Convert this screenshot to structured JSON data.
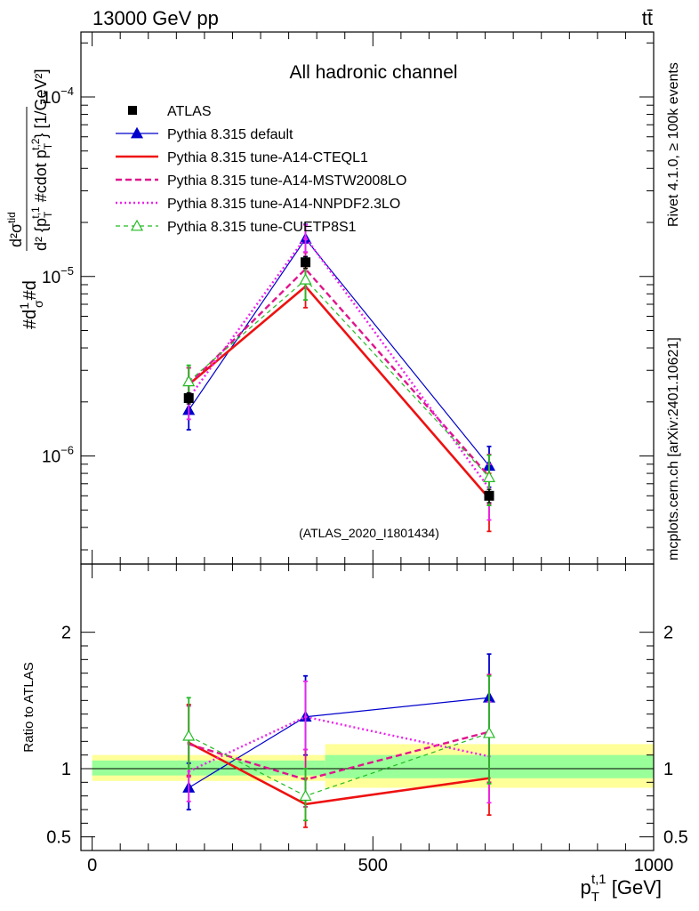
{
  "header": {
    "energy_label": "13000 GeV pp",
    "process_label": "tt̄",
    "channel_title": "All hadronic channel",
    "analysis_id": "(ATLAS_2020_I1801434)",
    "side_label_top": "Rivet 4.1.0, ≥ 100k events",
    "side_label_bottom": "mcplots.cern.ch [arXiv:2401.10621]"
  },
  "colors": {
    "data": "#000000",
    "default": "#0000cc",
    "cteql1": "#ee1111",
    "mstw": "#e0158c",
    "nnpdf": "#ee22ee",
    "cuetp": "#22bb22",
    "band_inner": "#99ff99",
    "band_outer": "#ffff99",
    "analysis_text": "#999999",
    "side_text": "#888888"
  },
  "chart_data": [
    {
      "type": "line",
      "panel": "main",
      "yscale": "log",
      "ylabel": "#d#frac{1}{σ}#d#frac{d^{2}σ^{tid}}{d^{2} {p_{T}^{t,1} #cdot p_{T}^{t,2}}} [1/GeV^{2}]",
      "ylabel_parts": {
        "top_frac": "d²σ",
        "top_sup": "tid",
        "left_a": "#d",
        "left_frac_num": "1",
        "left_frac_den": "σ",
        "left_b": "#d",
        "bottom": "d² {p",
        "bottom_sub": "T",
        "bottom_sup": "t,1",
        "bottom_mid": " #cdot p",
        "bottom_sub2": "T",
        "bottom_sup2": "t,2",
        "bottom_close": "}",
        "units": " [1/GeV²]"
      },
      "ylim": [
        2.5e-07,
        0.00023
      ],
      "xlim": [
        -20,
        1000
      ],
      "ytick_labels": [
        {
          "value": 1e-06,
          "mantissa": "10",
          "exponent": "−6"
        },
        {
          "value": 1e-05,
          "mantissa": "10",
          "exponent": "−5"
        },
        {
          "value": 0.0001,
          "mantissa": "10",
          "exponent": "−4"
        }
      ],
      "x": [
        172,
        380,
        707
      ],
      "data": {
        "name": "ATLAS",
        "values": [
          2.1e-06,
          1.2e-05,
          6e-07
        ],
        "yerr_low": [
          1.5e-07,
          9e-07,
          5e-08
        ],
        "yerr_high": [
          1.5e-07,
          9e-07,
          5e-08
        ]
      },
      "series": [
        {
          "name": "Pythia 8.315 default",
          "key": "default",
          "style": "solid",
          "width": 1.2,
          "marker": "triangle-filled",
          "values": [
            1.8e-06,
            1.62e-05,
            8.8e-07
          ],
          "yerr_low": [
            4e-07,
            3.3e-06,
            2.1e-07
          ],
          "yerr_high": [
            4e-07,
            3.3e-06,
            2.5e-07
          ]
        },
        {
          "name": "Pythia 8.315 tune-A14-CTEQL1",
          "key": "cteql1",
          "style": "solid",
          "width": 2.6,
          "marker": "none",
          "values": [
            2.5e-06,
            8.8e-06,
            5.8e-07
          ],
          "yerr_low": [
            5e-07,
            2.1e-06,
            2e-07
          ],
          "yerr_high": [
            6e-07,
            2.3e-06,
            2.2e-07
          ]
        },
        {
          "name": "Pythia 8.315 tune-A14-MSTW2008LO",
          "key": "mstw",
          "style": "dashed",
          "width": 2.4,
          "marker": "none",
          "values": [
            2.5e-06,
            1.1e-05,
            7.7e-07
          ],
          "yerr_low": [
            5e-07,
            2.4e-06,
            2.3e-07
          ],
          "yerr_high": [
            6e-07,
            2.6e-06,
            2.5e-07
          ]
        },
        {
          "name": "Pythia 8.315 tune-A14-NNPDF2.3LO",
          "key": "nnpdf",
          "style": "dotted",
          "width": 2.4,
          "marker": "none",
          "values": [
            2.1e-06,
            1.65e-05,
            6.6e-07
          ],
          "yerr_low": [
            5e-07,
            2.8e-06,
            2.2e-07
          ],
          "yerr_high": [
            6e-07,
            2.9e-06,
            2.4e-07
          ]
        },
        {
          "name": "Pythia 8.315 tune-CUETP8S1",
          "key": "cuetp",
          "style": "dashed-thin",
          "width": 1.2,
          "marker": "triangle-open",
          "values": [
            2.6e-06,
            9.6e-06,
            7.6e-07
          ],
          "yerr_low": [
            5e-07,
            2.2e-06,
            2.3e-07
          ],
          "yerr_high": [
            6e-07,
            2.4e-06,
            2.5e-07
          ]
        }
      ]
    },
    {
      "type": "line",
      "panel": "ratio",
      "ylabel": "Ratio to ATLAS",
      "xlabel": "p_{T}^{t,1} [GeV]",
      "xlabel_parts": {
        "main": "p",
        "sub": "T",
        "sup": "t,1",
        "units": " [GeV]"
      },
      "ylim": [
        0.4,
        2.5
      ],
      "xlim": [
        -20,
        1000
      ],
      "ytick_labels": [
        {
          "value": 0.5,
          "label": "0.5"
        },
        {
          "value": 1,
          "label": "1"
        },
        {
          "value": 2,
          "label": "2"
        }
      ],
      "xtick_labels": [
        {
          "value": 0,
          "label": "0"
        },
        {
          "value": 500,
          "label": "500"
        },
        {
          "value": 1000,
          "label": "1000"
        }
      ],
      "bands": [
        {
          "x0": 0,
          "x1": 415,
          "inner": [
            0.95,
            1.06
          ],
          "outer": [
            0.91,
            1.1
          ]
        },
        {
          "x0": 415,
          "x1": 1000,
          "inner": [
            0.93,
            1.1
          ],
          "outer": [
            0.86,
            1.18
          ]
        }
      ],
      "x": [
        172,
        380,
        707
      ],
      "series": [
        {
          "key": "default",
          "values": [
            0.86,
            1.38,
            1.52
          ],
          "yerr_low": [
            0.16,
            0.28,
            0.27
          ],
          "yerr_high": [
            0.18,
            0.3,
            0.32
          ]
        },
        {
          "key": "cteql1",
          "values": [
            1.19,
            0.74,
            0.93
          ],
          "yerr_low": [
            0.24,
            0.17,
            0.27
          ],
          "yerr_high": [
            0.28,
            0.19,
            0.32
          ]
        },
        {
          "key": "mstw",
          "values": [
            1.18,
            0.92,
            1.27
          ],
          "yerr_low": [
            0.24,
            0.2,
            0.37
          ],
          "yerr_high": [
            0.28,
            0.22,
            0.42
          ]
        },
        {
          "key": "nnpdf",
          "values": [
            0.98,
            1.38,
            1.09
          ],
          "yerr_low": [
            0.22,
            0.24,
            0.34
          ],
          "yerr_high": [
            0.25,
            0.26,
            0.4
          ]
        },
        {
          "key": "cuetp",
          "values": [
            1.24,
            0.8,
            1.26
          ],
          "yerr_low": [
            0.24,
            0.18,
            0.37
          ],
          "yerr_high": [
            0.28,
            0.2,
            0.42
          ]
        }
      ]
    }
  ]
}
